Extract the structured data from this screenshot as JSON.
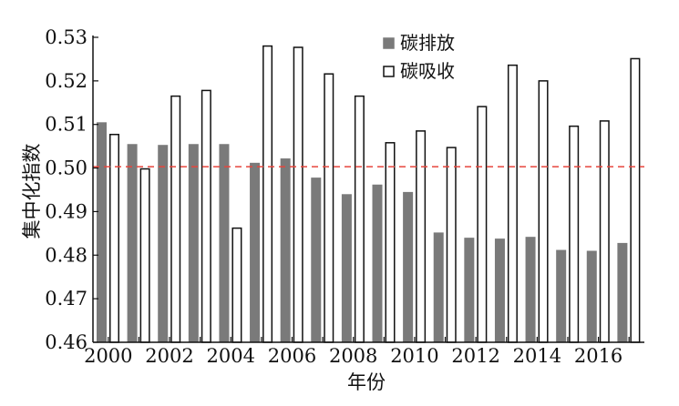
{
  "chart_data": {
    "type": "bar",
    "ylabel": "集中化指数",
    "xlabel": "年份",
    "ylim": [
      0.46,
      0.53
    ],
    "yticks": [
      "0.46",
      "0.47",
      "0.48",
      "0.49",
      "0.50",
      "0.51",
      "0.52",
      "0.53"
    ],
    "categories": [
      "2000",
      "2001",
      "2002",
      "2003",
      "2004",
      "2005",
      "2006",
      "2007",
      "2008",
      "2009",
      "2010",
      "2011",
      "2012",
      "2013",
      "2014",
      "2015",
      "2016",
      "2017"
    ],
    "xtick_labels": [
      "2000",
      "2002",
      "2004",
      "2006",
      "2008",
      "2010",
      "2012",
      "2014",
      "2016"
    ],
    "reference_line": 0.5003,
    "series": [
      {
        "name": "碳排放",
        "color": "#7a7a7a",
        "style": "filled",
        "values": [
          0.5105,
          0.5055,
          0.5053,
          0.5055,
          0.5055,
          0.5012,
          0.5022,
          0.4978,
          0.494,
          0.4962,
          0.4945,
          0.4852,
          0.484,
          0.4838,
          0.4842,
          0.4812,
          0.481,
          0.4828
        ]
      },
      {
        "name": "碳吸收",
        "color": "#ffffff",
        "style": "hollow",
        "values": [
          0.5077,
          0.4998,
          0.5165,
          0.5178,
          0.4862,
          0.528,
          0.5277,
          0.5216,
          0.5165,
          0.5058,
          0.5085,
          0.5047,
          0.5141,
          0.5236,
          0.52,
          0.5096,
          0.5108,
          0.5251
        ]
      }
    ],
    "legend_position": "top-right",
    "grid": false
  }
}
